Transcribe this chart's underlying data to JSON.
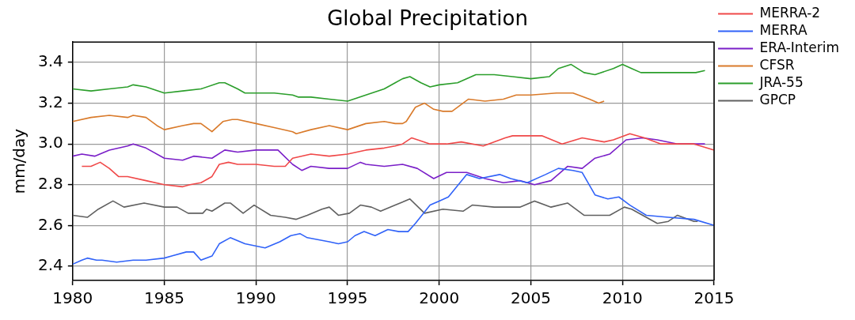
{
  "chart_data": {
    "type": "line",
    "title": "Global Precipitation",
    "ylabel": "mm/day",
    "xlim": [
      1980,
      2015
    ],
    "xticks": [
      1980,
      1985,
      1990,
      1995,
      2000,
      2005,
      2010,
      2015
    ],
    "ylim": [
      2.33,
      3.5
    ],
    "yticks": [
      2.4,
      2.6,
      2.8,
      {
        "value": 3,
        "label": "3.0"
      },
      3.2,
      3.4
    ],
    "grid": true,
    "legend": "right",
    "marker": "none",
    "line_style": "solid",
    "series": [
      {
        "name": "MERRA-2",
        "color": "#f04848",
        "x": [
          1980.5,
          1981.0,
          1981.5,
          1982.0,
          1982.5,
          1983.0,
          1984.0,
          1985.0,
          1986.0,
          1986.4,
          1987.0,
          1987.6,
          1988.0,
          1988.5,
          1989.0,
          1990.0,
          1991.0,
          1991.6,
          1992.0,
          1993.0,
          1994.0,
          1995.0,
          1996.0,
          1997.0,
          1997.6,
          1998.0,
          1998.5,
          1999.5,
          2000.4,
          2001.2,
          2002.4,
          2003.6,
          2004.0,
          2005.6,
          2006.7,
          2007.8,
          2009.0,
          2009.5,
          2010.4,
          2011.2,
          2012.1,
          2013.0,
          2013.9,
          2015.0
        ],
        "values": [
          2.89,
          2.89,
          2.91,
          2.88,
          2.84,
          2.84,
          2.82,
          2.8,
          2.79,
          2.8,
          2.81,
          2.84,
          2.9,
          2.91,
          2.9,
          2.9,
          2.89,
          2.89,
          2.93,
          2.95,
          2.94,
          2.95,
          2.97,
          2.98,
          2.99,
          3.0,
          3.03,
          3.0,
          3.0,
          3.01,
          2.99,
          3.03,
          3.04,
          3.04,
          3.0,
          3.03,
          3.01,
          3.02,
          3.05,
          3.03,
          3.0,
          3.0,
          3.0,
          2.97
        ]
      },
      {
        "name": "MERRA",
        "color": "#3062f8",
        "x": [
          1980.0,
          1980.5,
          1980.8,
          1981.3,
          1981.6,
          1982.4,
          1983.3,
          1984.0,
          1985.0,
          1985.4,
          1986.2,
          1986.6,
          1987.0,
          1987.6,
          1988.0,
          1988.6,
          1989.4,
          1990.5,
          1991.3,
          1991.9,
          1992.4,
          1992.8,
          1994.0,
          1994.5,
          1995.0,
          1995.4,
          1995.9,
          1996.5,
          1997.2,
          1997.8,
          1998.3,
          1998.7,
          1999.5,
          2000.0,
          2000.5,
          2001.5,
          2002.2,
          2003.3,
          2003.9,
          2004.8,
          2005.8,
          2006.5,
          2007.3,
          2007.8,
          2008.5,
          2009.2,
          2009.8,
          2010.4,
          2011.3,
          2012.5,
          2013.9,
          2015.0
        ],
        "values": [
          2.41,
          2.43,
          2.44,
          2.43,
          2.43,
          2.42,
          2.43,
          2.43,
          2.44,
          2.45,
          2.47,
          2.47,
          2.43,
          2.45,
          2.51,
          2.54,
          2.51,
          2.49,
          2.52,
          2.55,
          2.56,
          2.54,
          2.52,
          2.51,
          2.52,
          2.55,
          2.57,
          2.55,
          2.58,
          2.57,
          2.57,
          2.61,
          2.7,
          2.72,
          2.74,
          2.85,
          2.83,
          2.85,
          2.83,
          2.81,
          2.85,
          2.88,
          2.87,
          2.86,
          2.75,
          2.73,
          2.74,
          2.7,
          2.65,
          2.64,
          2.63,
          2.6
        ]
      },
      {
        "name": "ERA-Interim",
        "color": "#7a1fc8",
        "x": [
          1980.0,
          1980.5,
          1981.2,
          1982.0,
          1983.0,
          1983.3,
          1984.0,
          1985.0,
          1986.0,
          1986.6,
          1987.6,
          1988.3,
          1989.0,
          1990.0,
          1991.0,
          1991.2,
          1992.0,
          1992.5,
          1993.0,
          1994.0,
          1995.0,
          1995.7,
          1996.0,
          1997.0,
          1998.0,
          1998.8,
          1999.7,
          2000.4,
          2001.5,
          2002.5,
          2003.5,
          2004.4,
          2005.2,
          2006.1,
          2007.0,
          2007.8,
          2008.5,
          2009.3,
          2010.2,
          2011.1,
          2011.9,
          2013.0,
          2013.9,
          2014.5
        ],
        "values": [
          2.94,
          2.95,
          2.94,
          2.97,
          2.99,
          3.0,
          2.98,
          2.93,
          2.92,
          2.94,
          2.93,
          2.97,
          2.96,
          2.97,
          2.97,
          2.97,
          2.9,
          2.87,
          2.89,
          2.88,
          2.88,
          2.91,
          2.9,
          2.89,
          2.9,
          2.88,
          2.83,
          2.86,
          2.86,
          2.83,
          2.81,
          2.82,
          2.8,
          2.82,
          2.89,
          2.88,
          2.93,
          2.95,
          3.02,
          3.03,
          3.02,
          3.0,
          3.0,
          3.0
        ]
      },
      {
        "name": "CFSR",
        "color": "#d97a2a",
        "x": [
          1980.0,
          1981.0,
          1982.0,
          1983.0,
          1983.3,
          1984.0,
          1984.6,
          1985.0,
          1986.0,
          1986.6,
          1987.0,
          1987.6,
          1988.2,
          1988.7,
          1989.0,
          1990.0,
          1991.0,
          1992.0,
          1992.2,
          1993.0,
          1994.0,
          1995.0,
          1996.0,
          1997.0,
          1997.6,
          1998.0,
          1998.2,
          1998.7,
          1999.2,
          1999.7,
          2000.2,
          2000.7,
          2001.6,
          2002.5,
          2003.5,
          2004.2,
          2005.0,
          2006.4,
          2007.3,
          2008.2,
          2008.7,
          2009.0
        ],
        "values": [
          3.11,
          3.13,
          3.14,
          3.13,
          3.14,
          3.13,
          3.09,
          3.07,
          3.09,
          3.1,
          3.1,
          3.06,
          3.11,
          3.12,
          3.12,
          3.1,
          3.08,
          3.06,
          3.05,
          3.07,
          3.09,
          3.07,
          3.1,
          3.11,
          3.1,
          3.1,
          3.11,
          3.18,
          3.2,
          3.17,
          3.16,
          3.16,
          3.22,
          3.21,
          3.22,
          3.24,
          3.24,
          3.25,
          3.25,
          3.22,
          3.2,
          3.21
        ]
      },
      {
        "name": "JRA-55",
        "color": "#2b9e2b",
        "x": [
          1980.0,
          1981.0,
          1982.0,
          1983.0,
          1983.3,
          1984.0,
          1985.0,
          1986.0,
          1987.0,
          1988.0,
          1988.3,
          1989.0,
          1989.4,
          1990.0,
          1991.0,
          1992.0,
          1992.3,
          1993.0,
          1994.0,
          1995.0,
          1996.0,
          1997.0,
          1997.6,
          1998.0,
          1998.4,
          1999.0,
          1999.5,
          2000.0,
          2001.0,
          2002.0,
          2003.0,
          2004.0,
          2005.0,
          2006.0,
          2006.5,
          2007.2,
          2007.9,
          2008.5,
          2009.5,
          2010.0,
          2010.5,
          2011.0,
          2012.0,
          2013.0,
          2014.0,
          2014.5
        ],
        "values": [
          3.27,
          3.26,
          3.27,
          3.28,
          3.29,
          3.28,
          3.25,
          3.26,
          3.27,
          3.3,
          3.3,
          3.27,
          3.25,
          3.25,
          3.25,
          3.24,
          3.23,
          3.23,
          3.22,
          3.21,
          3.24,
          3.27,
          3.3,
          3.32,
          3.33,
          3.3,
          3.28,
          3.29,
          3.3,
          3.34,
          3.34,
          3.33,
          3.32,
          3.33,
          3.37,
          3.39,
          3.35,
          3.34,
          3.37,
          3.39,
          3.37,
          3.35,
          3.35,
          3.35,
          3.35,
          3.36
        ]
      },
      {
        "name": "GPCP",
        "color": "#606060",
        "x": [
          1980.0,
          1980.8,
          1981.4,
          1982.2,
          1982.8,
          1983.9,
          1985.0,
          1985.7,
          1986.3,
          1987.1,
          1987.3,
          1987.6,
          1988.3,
          1988.6,
          1989.3,
          1989.9,
          1990.8,
          1991.6,
          1992.2,
          1992.8,
          1993.6,
          1994.0,
          1994.5,
          1995.1,
          1995.7,
          1996.3,
          1996.8,
          1997.6,
          1998.4,
          1999.2,
          2000.2,
          2001.3,
          2001.8,
          2003.0,
          2004.4,
          2005.2,
          2006.1,
          2007.0,
          2007.9,
          2009.3,
          2010.1,
          2010.5,
          2011.9,
          2012.5,
          2013.0,
          2013.9,
          2014.1
        ],
        "values": [
          2.65,
          2.64,
          2.68,
          2.72,
          2.69,
          2.71,
          2.69,
          2.69,
          2.66,
          2.66,
          2.68,
          2.67,
          2.71,
          2.71,
          2.66,
          2.7,
          2.65,
          2.64,
          2.63,
          2.65,
          2.68,
          2.69,
          2.65,
          2.66,
          2.7,
          2.69,
          2.67,
          2.7,
          2.73,
          2.66,
          2.68,
          2.67,
          2.7,
          2.69,
          2.69,
          2.72,
          2.69,
          2.71,
          2.65,
          2.65,
          2.69,
          2.68,
          2.61,
          2.62,
          2.65,
          2.62,
          2.62
        ]
      }
    ]
  }
}
